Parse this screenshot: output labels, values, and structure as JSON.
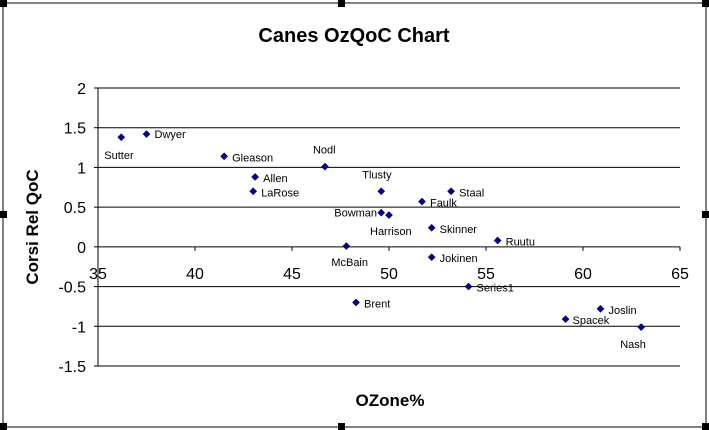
{
  "chart_data": {
    "type": "scatter",
    "title": "Canes OzQoC Chart",
    "xlabel": "OZone%",
    "ylabel": "Corsi Rel QoC",
    "xlim": [
      35,
      65
    ],
    "ylim": [
      -1.5,
      2
    ],
    "x_ticks": [
      35,
      40,
      45,
      50,
      55,
      60,
      65
    ],
    "y_ticks": [
      2,
      1.5,
      1,
      0.5,
      0,
      -0.5,
      -1,
      -1.5
    ],
    "grid": "horizontal",
    "legend": "none",
    "marker_color": "#000080",
    "points": [
      {
        "label": "Sutter",
        "x": 36.2,
        "y": 1.38
      },
      {
        "label": "Dwyer",
        "x": 37.5,
        "y": 1.42
      },
      {
        "label": "Gleason",
        "x": 41.5,
        "y": 1.14
      },
      {
        "label": "Allen",
        "x": 43.1,
        "y": 0.88
      },
      {
        "label": "LaRose",
        "x": 43.0,
        "y": 0.7
      },
      {
        "label": "Nodl",
        "x": 46.7,
        "y": 1.01
      },
      {
        "label": "Tlusty",
        "x": 49.6,
        "y": 0.7
      },
      {
        "label": "Staal",
        "x": 53.2,
        "y": 0.7
      },
      {
        "label": "Faulk",
        "x": 51.7,
        "y": 0.57
      },
      {
        "label": "Bowman",
        "x": 49.6,
        "y": 0.43
      },
      {
        "label": "Harrison",
        "x": 50.0,
        "y": 0.4
      },
      {
        "label": "Skinner",
        "x": 52.2,
        "y": 0.24
      },
      {
        "label": "Ruutu",
        "x": 55.6,
        "y": 0.08
      },
      {
        "label": "McBain",
        "x": 47.8,
        "y": 0.01
      },
      {
        "label": "Jokinen",
        "x": 52.2,
        "y": -0.13
      },
      {
        "label": "Series1",
        "x": 54.1,
        "y": -0.5
      },
      {
        "label": "Brent",
        "x": 48.3,
        "y": -0.7
      },
      {
        "label": "Joslin",
        "x": 60.9,
        "y": -0.78
      },
      {
        "label": "Spacek",
        "x": 59.1,
        "y": -0.91
      },
      {
        "label": "Nash",
        "x": 63.0,
        "y": -1.01
      }
    ]
  }
}
